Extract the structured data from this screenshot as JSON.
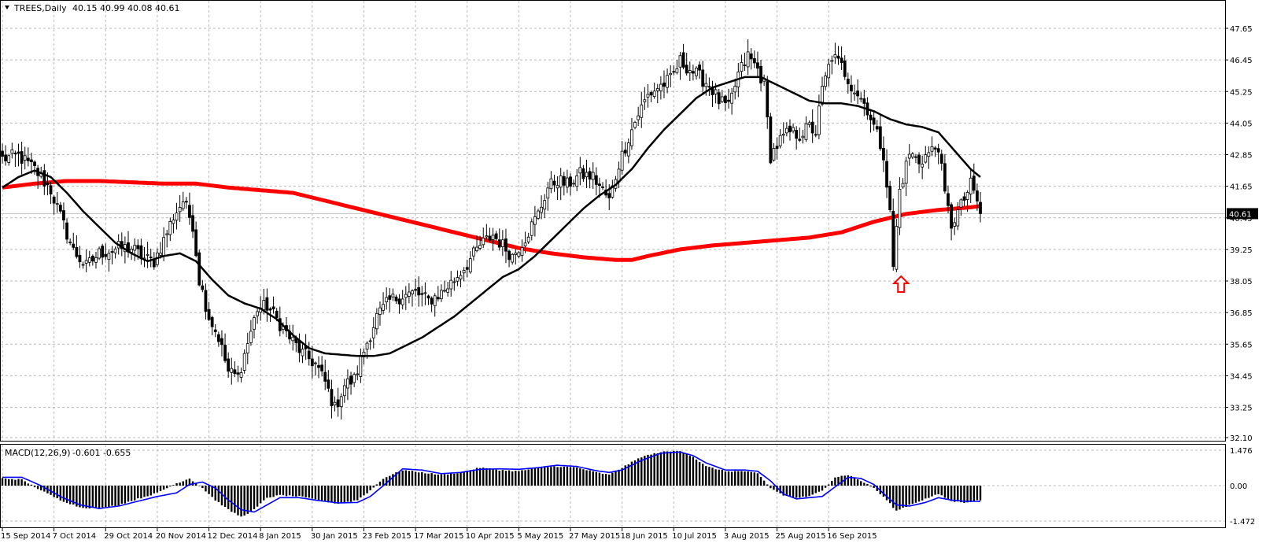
{
  "header": {
    "symbol": "TREES,Daily",
    "ohlc": "40.15 40.99 40.08 40.61"
  },
  "macd_header": {
    "name": "MACD(12,26,9)",
    "values": "-0.601 -0.655"
  },
  "current_price_label": "40.61",
  "colors": {
    "ma_long": "#ff0000",
    "ma_short": "#000000",
    "signal": "#0000ff",
    "histogram": "#000000",
    "candles": "#000000",
    "arrow": "#ff0000",
    "price_label_bg": "#000000"
  },
  "icons": {
    "header_toggle": "triangle-down-icon",
    "marker": "up-arrow-icon"
  },
  "chart_data": [
    {
      "type": "candlestick",
      "title": "TREES,Daily",
      "y_ticks": [
        "47.65",
        "46.45",
        "45.25",
        "44.05",
        "42.85",
        "41.65",
        "40.45",
        "39.25",
        "38.05",
        "36.85",
        "35.65",
        "34.45",
        "33.25",
        "32.10"
      ],
      "x_ticks": [
        "15 Sep 2014",
        "7 Oct 2014",
        "29 Oct 2014",
        "20 Nov 2014",
        "12 Dec 2014",
        "8 Jan 2015",
        "30 Jan 2015",
        "23 Feb 2015",
        "17 Mar 2015",
        "10 Apr 2015",
        "5 May 2015",
        "27 May 2015",
        "18 Jun 2015",
        "10 Jul 2015",
        "3 Aug 2015",
        "25 Aug 2015",
        "16 Sep 2015"
      ],
      "ylim": [
        32.1,
        47.65
      ],
      "grid": true,
      "last_price": 40.61,
      "close_anchors": [
        [
          0,
          42.7
        ],
        [
          5,
          42.8
        ],
        [
          10,
          42.3
        ],
        [
          15,
          41.5
        ],
        [
          18,
          40.5
        ],
        [
          22,
          39.2
        ],
        [
          26,
          38.6
        ],
        [
          30,
          39.1
        ],
        [
          36,
          39.3
        ],
        [
          40,
          39.3
        ],
        [
          44,
          38.9
        ],
        [
          47,
          38.8
        ],
        [
          50,
          39.6
        ],
        [
          53,
          40.5
        ],
        [
          56,
          41.1
        ],
        [
          59,
          40.2
        ],
        [
          61,
          38.1
        ],
        [
          64,
          36.7
        ],
        [
          67,
          35.9
        ],
        [
          70,
          34.6
        ],
        [
          73,
          34.4
        ],
        [
          76,
          35.7
        ],
        [
          79,
          37.0
        ],
        [
          82,
          37.1
        ],
        [
          85,
          36.6
        ],
        [
          89,
          35.9
        ],
        [
          93,
          35.3
        ],
        [
          97,
          34.9
        ],
        [
          100,
          34.2
        ],
        [
          103,
          33.2
        ],
        [
          106,
          34.1
        ],
        [
          109,
          34.3
        ],
        [
          112,
          35.4
        ],
        [
          116,
          36.7
        ],
        [
          120,
          37.3
        ],
        [
          124,
          37.5
        ],
        [
          128,
          37.6
        ],
        [
          132,
          37.3
        ],
        [
          136,
          37.6
        ],
        [
          140,
          38.1
        ],
        [
          144,
          38.7
        ],
        [
          148,
          39.4
        ],
        [
          152,
          39.8
        ],
        [
          155,
          39.4
        ],
        [
          158,
          39.0
        ],
        [
          162,
          39.7
        ],
        [
          166,
          40.6
        ],
        [
          169,
          41.6
        ],
        [
          172,
          41.9
        ],
        [
          175,
          41.7
        ],
        [
          179,
          42.1
        ],
        [
          183,
          42.0
        ],
        [
          186,
          41.5
        ],
        [
          188,
          41.1
        ],
        [
          191,
          42.5
        ],
        [
          194,
          43.5
        ],
        [
          197,
          44.4
        ],
        [
          200,
          45.1
        ],
        [
          203,
          45.4
        ],
        [
          207,
          45.7
        ],
        [
          210,
          46.4
        ],
        [
          213,
          46.1
        ],
        [
          216,
          45.8
        ],
        [
          219,
          45.5
        ],
        [
          222,
          44.9
        ],
        [
          225,
          44.6
        ],
        [
          228,
          45.9
        ],
        [
          231,
          46.6
        ],
        [
          234,
          46.1
        ],
        [
          236,
          45.5
        ],
        [
          238,
          42.8
        ],
        [
          241,
          43.4
        ],
        [
          244,
          43.7
        ],
        [
          247,
          43.6
        ],
        [
          250,
          43.9
        ],
        [
          252,
          43.7
        ],
        [
          254,
          45.3
        ],
        [
          257,
          46.6
        ],
        [
          260,
          46.2
        ],
        [
          263,
          45.5
        ],
        [
          266,
          45.0
        ],
        [
          268,
          44.6
        ],
        [
          271,
          43.6
        ],
        [
          273,
          42.9
        ],
        [
          275,
          40.6
        ],
        [
          276,
          38.6
        ],
        [
          278,
          41.5
        ],
        [
          281,
          42.9
        ],
        [
          284,
          42.6
        ],
        [
          287,
          42.9
        ],
        [
          290,
          43.2
        ],
        [
          292,
          41.3
        ],
        [
          294,
          40.2
        ],
        [
          297,
          40.9
        ],
        [
          300,
          41.7
        ],
        [
          302,
          41.1
        ],
        [
          303,
          40.61
        ]
      ],
      "ma_short_anchors": [
        [
          0,
          41.6
        ],
        [
          5,
          42.0
        ],
        [
          10,
          42.25
        ],
        [
          15,
          42.0
        ],
        [
          20,
          41.4
        ],
        [
          25,
          40.7
        ],
        [
          30,
          40.1
        ],
        [
          35,
          39.5
        ],
        [
          40,
          39.1
        ],
        [
          45,
          38.8
        ],
        [
          50,
          39.0
        ],
        [
          55,
          39.1
        ],
        [
          60,
          38.8
        ],
        [
          65,
          38.1
        ],
        [
          70,
          37.5
        ],
        [
          75,
          37.2
        ],
        [
          80,
          37.0
        ],
        [
          85,
          36.6
        ],
        [
          90,
          36.0
        ],
        [
          95,
          35.5
        ],
        [
          100,
          35.3
        ],
        [
          105,
          35.25
        ],
        [
          110,
          35.2
        ],
        [
          115,
          35.2
        ],
        [
          120,
          35.3
        ],
        [
          125,
          35.6
        ],
        [
          130,
          35.9
        ],
        [
          135,
          36.3
        ],
        [
          140,
          36.7
        ],
        [
          145,
          37.2
        ],
        [
          150,
          37.7
        ],
        [
          155,
          38.2
        ],
        [
          160,
          38.5
        ],
        [
          165,
          39.0
        ],
        [
          170,
          39.6
        ],
        [
          175,
          40.2
        ],
        [
          180,
          40.8
        ],
        [
          185,
          41.3
        ],
        [
          190,
          41.7
        ],
        [
          195,
          42.3
        ],
        [
          200,
          43.1
        ],
        [
          205,
          43.8
        ],
        [
          210,
          44.4
        ],
        [
          215,
          45.0
        ],
        [
          220,
          45.4
        ],
        [
          225,
          45.6
        ],
        [
          230,
          45.8
        ],
        [
          235,
          45.8
        ],
        [
          240,
          45.5
        ],
        [
          245,
          45.2
        ],
        [
          250,
          44.9
        ],
        [
          255,
          44.8
        ],
        [
          260,
          44.8
        ],
        [
          265,
          44.7
        ],
        [
          270,
          44.5
        ],
        [
          275,
          44.2
        ],
        [
          280,
          44.0
        ],
        [
          285,
          43.9
        ],
        [
          290,
          43.7
        ],
        [
          295,
          43.0
        ],
        [
          300,
          42.3
        ],
        [
          303,
          42.0
        ]
      ],
      "ma_long_anchors": [
        [
          0,
          41.6
        ],
        [
          10,
          41.75
        ],
        [
          20,
          41.85
        ],
        [
          30,
          41.85
        ],
        [
          40,
          41.8
        ],
        [
          50,
          41.75
        ],
        [
          60,
          41.75
        ],
        [
          70,
          41.6
        ],
        [
          80,
          41.5
        ],
        [
          90,
          41.4
        ],
        [
          100,
          41.1
        ],
        [
          110,
          40.8
        ],
        [
          120,
          40.5
        ],
        [
          130,
          40.2
        ],
        [
          140,
          39.9
        ],
        [
          150,
          39.6
        ],
        [
          160,
          39.3
        ],
        [
          170,
          39.1
        ],
        [
          180,
          38.95
        ],
        [
          190,
          38.85
        ],
        [
          195,
          38.85
        ],
        [
          200,
          39.0
        ],
        [
          210,
          39.25
        ],
        [
          220,
          39.4
        ],
        [
          230,
          39.5
        ],
        [
          240,
          39.6
        ],
        [
          250,
          39.7
        ],
        [
          260,
          39.9
        ],
        [
          270,
          40.3
        ],
        [
          275,
          40.45
        ],
        [
          280,
          40.6
        ],
        [
          290,
          40.75
        ],
        [
          300,
          40.85
        ],
        [
          303,
          40.9
        ]
      ],
      "marker_index": 276
    },
    {
      "type": "bar",
      "title": "MACD(12,26,9)",
      "y_ticks": [
        "1.476",
        "0.00",
        "-1.472"
      ],
      "ylim": [
        -1.472,
        1.476
      ],
      "last_values": [
        -0.601,
        -0.655
      ],
      "hist_anchors": [
        [
          0,
          0.3
        ],
        [
          6,
          0.25
        ],
        [
          12,
          -0.2
        ],
        [
          18,
          -0.6
        ],
        [
          24,
          -0.9
        ],
        [
          30,
          -0.95
        ],
        [
          36,
          -0.8
        ],
        [
          42,
          -0.55
        ],
        [
          48,
          -0.3
        ],
        [
          54,
          0.1
        ],
        [
          58,
          0.3
        ],
        [
          62,
          -0.1
        ],
        [
          66,
          -0.6
        ],
        [
          70,
          -1.0
        ],
        [
          74,
          -1.3
        ],
        [
          78,
          -1.0
        ],
        [
          82,
          -0.5
        ],
        [
          86,
          -0.4
        ],
        [
          92,
          -0.45
        ],
        [
          98,
          -0.6
        ],
        [
          104,
          -0.75
        ],
        [
          110,
          -0.6
        ],
        [
          114,
          -0.2
        ],
        [
          118,
          0.3
        ],
        [
          124,
          0.65
        ],
        [
          130,
          0.55
        ],
        [
          136,
          0.45
        ],
        [
          142,
          0.55
        ],
        [
          148,
          0.75
        ],
        [
          154,
          0.65
        ],
        [
          160,
          0.6
        ],
        [
          166,
          0.75
        ],
        [
          172,
          0.8
        ],
        [
          178,
          0.75
        ],
        [
          184,
          0.55
        ],
        [
          188,
          0.45
        ],
        [
          192,
          0.75
        ],
        [
          198,
          1.2
        ],
        [
          204,
          1.4
        ],
        [
          210,
          1.45
        ],
        [
          214,
          1.2
        ],
        [
          218,
          0.8
        ],
        [
          224,
          0.6
        ],
        [
          230,
          0.6
        ],
        [
          234,
          0.5
        ],
        [
          238,
          -0.1
        ],
        [
          242,
          -0.4
        ],
        [
          246,
          -0.5
        ],
        [
          250,
          -0.45
        ],
        [
          254,
          -0.2
        ],
        [
          258,
          0.35
        ],
        [
          262,
          0.45
        ],
        [
          266,
          0.2
        ],
        [
          270,
          -0.1
        ],
        [
          274,
          -0.6
        ],
        [
          277,
          -1.05
        ],
        [
          281,
          -0.8
        ],
        [
          286,
          -0.55
        ],
        [
          290,
          -0.35
        ],
        [
          294,
          -0.65
        ],
        [
          298,
          -0.7
        ],
        [
          303,
          -0.6
        ]
      ],
      "signal_anchors": [
        [
          0,
          0.35
        ],
        [
          6,
          0.35
        ],
        [
          12,
          0.0
        ],
        [
          18,
          -0.45
        ],
        [
          24,
          -0.8
        ],
        [
          30,
          -0.95
        ],
        [
          36,
          -0.85
        ],
        [
          42,
          -0.65
        ],
        [
          48,
          -0.45
        ],
        [
          54,
          -0.3
        ],
        [
          58,
          0.05
        ],
        [
          62,
          0.15
        ],
        [
          66,
          -0.1
        ],
        [
          70,
          -0.6
        ],
        [
          74,
          -1.0
        ],
        [
          78,
          -1.1
        ],
        [
          82,
          -0.8
        ],
        [
          86,
          -0.5
        ],
        [
          92,
          -0.5
        ],
        [
          98,
          -0.62
        ],
        [
          104,
          -0.72
        ],
        [
          110,
          -0.7
        ],
        [
          114,
          -0.45
        ],
        [
          118,
          0.0
        ],
        [
          124,
          0.7
        ],
        [
          130,
          0.65
        ],
        [
          136,
          0.5
        ],
        [
          142,
          0.55
        ],
        [
          148,
          0.68
        ],
        [
          154,
          0.7
        ],
        [
          160,
          0.68
        ],
        [
          166,
          0.75
        ],
        [
          172,
          0.85
        ],
        [
          178,
          0.8
        ],
        [
          184,
          0.62
        ],
        [
          188,
          0.55
        ],
        [
          192,
          0.65
        ],
        [
          198,
          1.05
        ],
        [
          204,
          1.35
        ],
        [
          210,
          1.4
        ],
        [
          214,
          1.25
        ],
        [
          218,
          0.95
        ],
        [
          224,
          0.65
        ],
        [
          230,
          0.65
        ],
        [
          234,
          0.6
        ],
        [
          238,
          0.2
        ],
        [
          242,
          -0.35
        ],
        [
          246,
          -0.55
        ],
        [
          250,
          -0.5
        ],
        [
          254,
          -0.45
        ],
        [
          258,
          -0.05
        ],
        [
          262,
          0.35
        ],
        [
          266,
          0.3
        ],
        [
          270,
          0.05
        ],
        [
          274,
          -0.45
        ],
        [
          277,
          -0.8
        ],
        [
          281,
          -0.85
        ],
        [
          286,
          -0.7
        ],
        [
          290,
          -0.5
        ],
        [
          294,
          -0.6
        ],
        [
          298,
          -0.65
        ],
        [
          303,
          -0.655
        ]
      ]
    }
  ]
}
